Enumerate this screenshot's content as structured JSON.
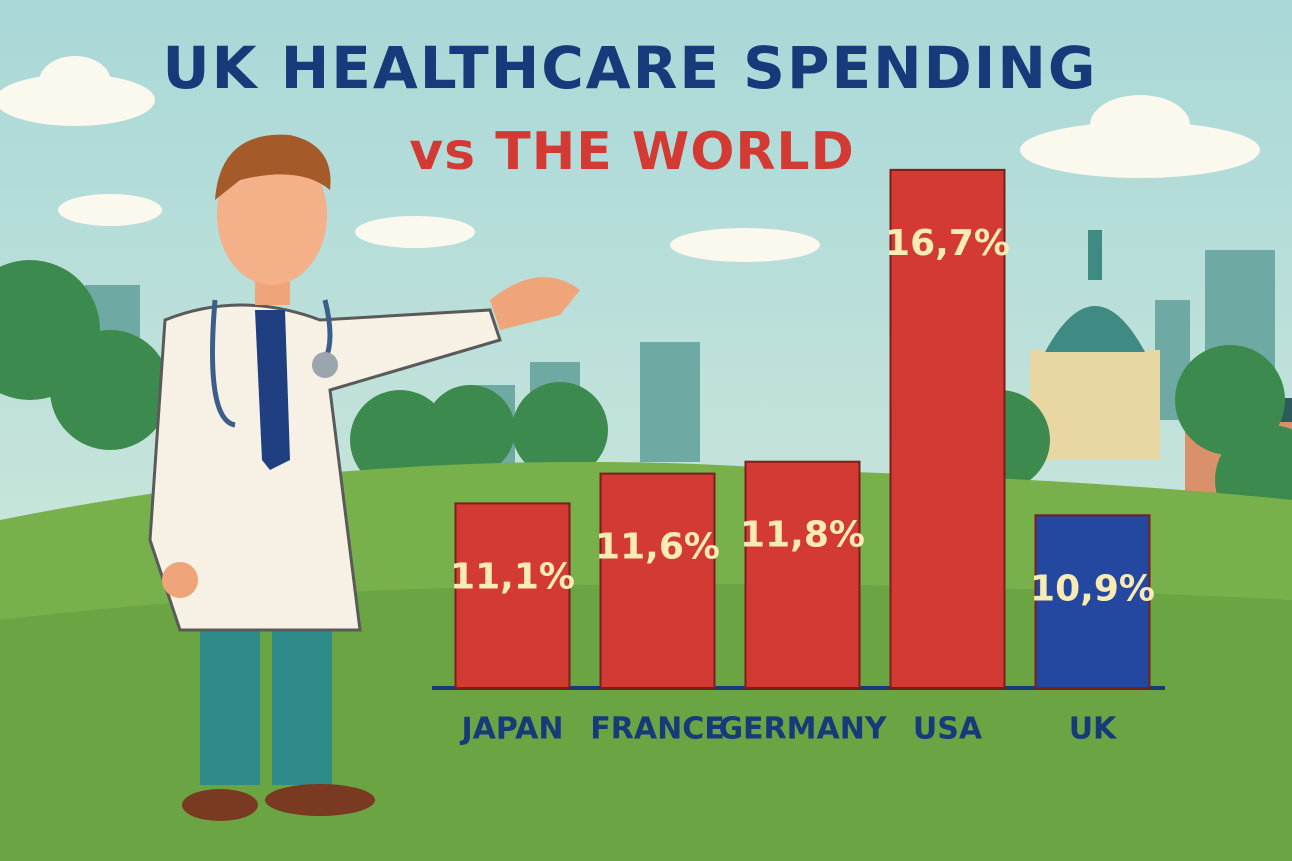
{
  "chart_data": {
    "type": "bar",
    "title": "UK HEALTHCARE SPENDING",
    "subtitle": "vs THE WORLD",
    "categories": [
      "JAPAN",
      "FRANCE",
      "GERMANY",
      "USA",
      "UK"
    ],
    "values": [
      11.1,
      11.6,
      11.8,
      16.7,
      10.9
    ],
    "value_labels": [
      "11,1%",
      "11,6%",
      "11,8%",
      "16,7%",
      "10,9%"
    ],
    "colors": [
      "#d23a33",
      "#d23a33",
      "#d23a33",
      "#d23a33",
      "#2447a0"
    ],
    "ylim": [
      8,
      17
    ]
  }
}
